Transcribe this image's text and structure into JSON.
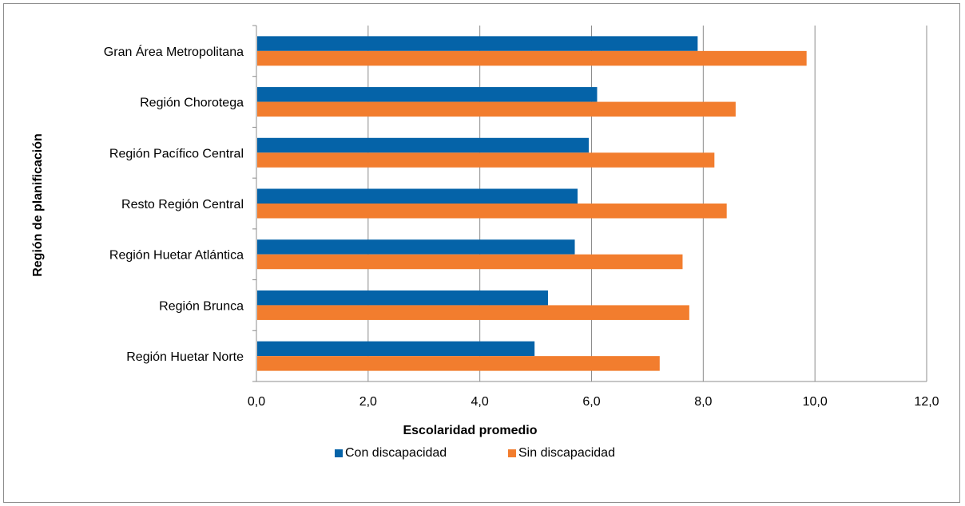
{
  "chart_data": {
    "type": "bar",
    "orientation": "horizontal",
    "categories": [
      "Gran Área Metropolitana",
      "Región Chorotega",
      "Región Pacífico Central",
      "Resto Región Central",
      "Región Huetar Atlántica",
      "Región Brunca",
      "Región Huetar Norte"
    ],
    "series": [
      {
        "name": "Con discapacidad",
        "color": "#0563a8",
        "values": [
          7.9,
          6.1,
          5.95,
          5.75,
          5.7,
          5.22,
          4.98
        ]
      },
      {
        "name": "Sin discapacidad",
        "color": "#f27d2e",
        "values": [
          9.85,
          8.58,
          8.2,
          8.42,
          7.63,
          7.75,
          7.22
        ]
      }
    ],
    "xlabel": "Escolaridad promedio",
    "ylabel": "Región de planificación",
    "xlim": [
      0,
      12
    ],
    "xticks": [
      "0,0",
      "2,0",
      "4,0",
      "6,0",
      "8,0",
      "10,0",
      "12,0"
    ],
    "grid": "vertical",
    "legend_position": "bottom"
  }
}
